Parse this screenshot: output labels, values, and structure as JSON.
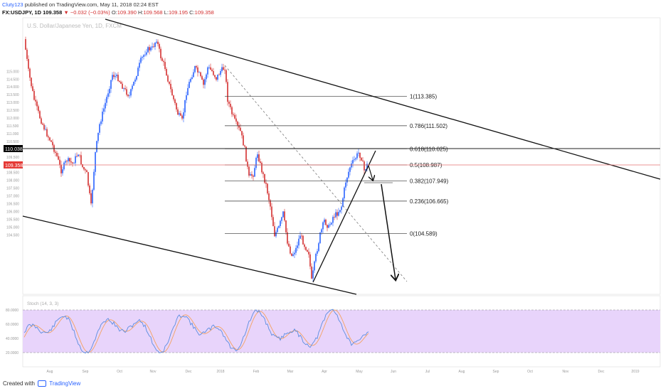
{
  "header": {
    "user": "Cluty123",
    "published": "published on TradingView.com, May 11, 2018 02:24 EST",
    "symbol": "FX:USDJPY, 1D",
    "price": "109.358",
    "change": "▼ −0.032 (−0.03%)",
    "o_label": "O:",
    "o_value": "109.390",
    "h_label": "H:",
    "h_value": "109.568",
    "l_label": "L:",
    "l_value": "109.195",
    "c_label": "C:",
    "c_value": "109.358"
  },
  "watermark": "U.S. Dollar/Japanese Yen, 1D, FXCM",
  "price_labels": [
    {
      "text": "110.038",
      "color": "#000000"
    },
    {
      "text": "109.358",
      "color": "#e53935"
    }
  ],
  "oscillator_label": "Stoch (14, 3, 3)",
  "footer": {
    "created": "Created with",
    "brand": "TradingView"
  },
  "colors": {
    "up": "#2962ff",
    "down": "#d32f2f",
    "stoch_fill": "#e8d4fb",
    "k_line": "#5b8de0",
    "d_line": "#f4a261"
  },
  "chart_data": {
    "type": "candlestick",
    "symbol": "USDJPY",
    "timeframe": "1D",
    "y_ticks": [
      "115.000",
      "114.500",
      "114.000",
      "113.500",
      "113.000",
      "112.500",
      "112.000",
      "111.500",
      "111.000",
      "110.500",
      "110.000",
      "109.500",
      "109.000",
      "108.500",
      "108.000",
      "107.500",
      "107.000",
      "106.500",
      "106.000",
      "105.500",
      "105.000",
      "104.500"
    ],
    "x_ticks": [
      "Aug",
      "Sep",
      "Oct",
      "Nov",
      "Dec",
      "2018",
      "Feb",
      "Mar",
      "Apr",
      "May",
      "Jun",
      "Jul",
      "Aug",
      "Sep",
      "Oct",
      "Nov",
      "Dec",
      "2019"
    ],
    "ylim": [
      104.2,
      115.3
    ],
    "fib_levels": [
      {
        "ratio": "1",
        "price": 113.385,
        "label": "1(113.385)"
      },
      {
        "ratio": "0.786",
        "price": 111.502,
        "label": "0.786(111.502)"
      },
      {
        "ratio": "0.618",
        "price": 110.025,
        "label": "0.618(110.025)"
      },
      {
        "ratio": "0.5",
        "price": 108.987,
        "label": "0.5(108.987)"
      },
      {
        "ratio": "0.382",
        "price": 107.949,
        "label": "0.382(107.949)"
      },
      {
        "ratio": "0.236",
        "price": 106.665,
        "label": "0.236(106.665)"
      },
      {
        "ratio": "0",
        "price": 104.589,
        "label": "0(104.589)"
      }
    ],
    "stoch_ticks": [
      "80.0000",
      "60.0000",
      "40.0000",
      "20.0000"
    ],
    "stoch_bands": [
      80,
      20
    ]
  }
}
